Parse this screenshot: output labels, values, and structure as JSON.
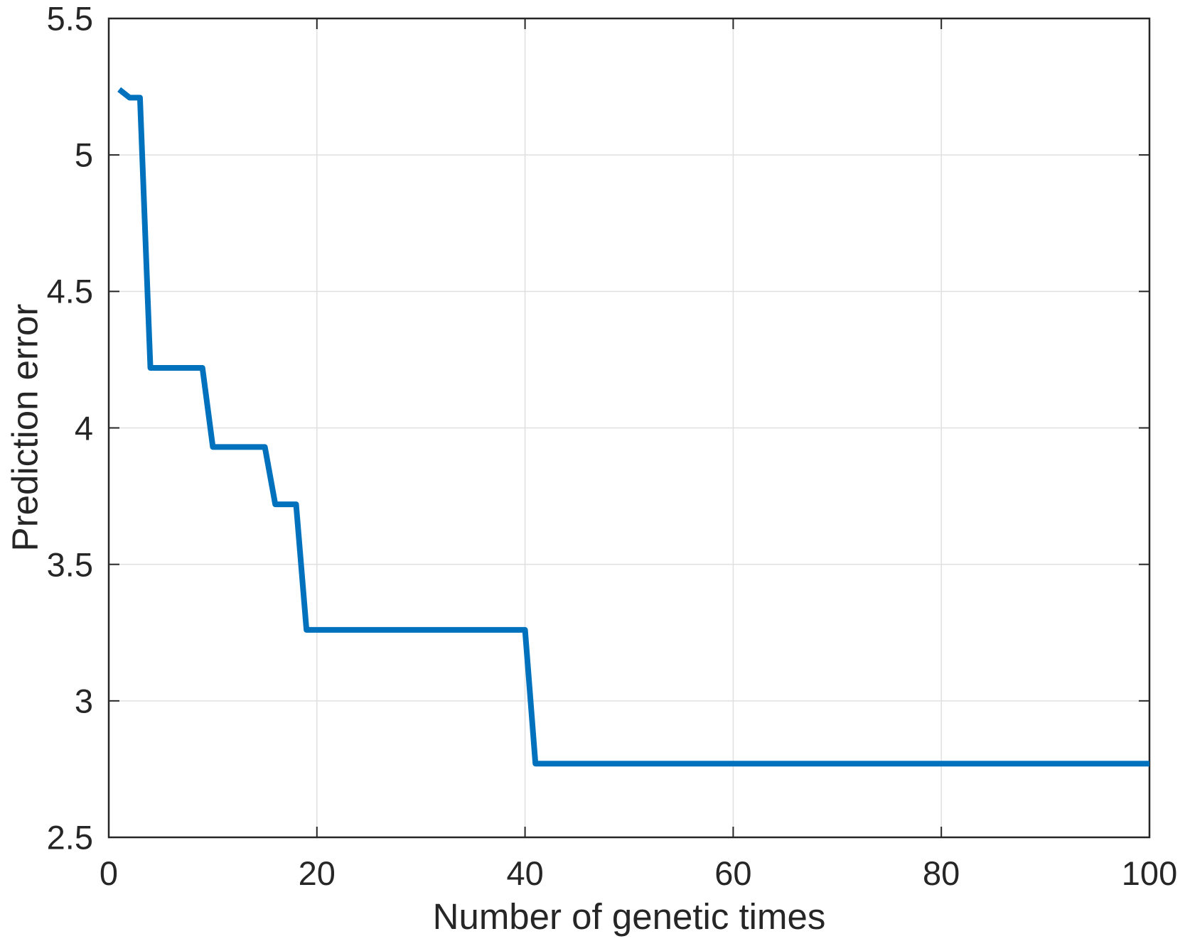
{
  "figure": {
    "background_color": "#ffffff"
  },
  "chart_data": {
    "type": "line",
    "xlabel": "Number of genetic times",
    "ylabel": "Prediction error",
    "xlim": [
      0,
      100
    ],
    "ylim": [
      2.5,
      5.5
    ],
    "xticks": [
      0,
      20,
      40,
      60,
      80,
      100
    ],
    "yticks": [
      2.5,
      3,
      3.5,
      4,
      4.5,
      5,
      5.5
    ],
    "xtick_labels": [
      "0",
      "20",
      "40",
      "60",
      "80",
      "100"
    ],
    "ytick_labels": [
      "2.5",
      "3",
      "3.5",
      "4",
      "4.5",
      "5",
      "5.5"
    ],
    "grid": true,
    "legend_position": "none",
    "axis_color": "#262626",
    "grid_color": "#e0e0e0",
    "tick_label_color": "#262626",
    "series": [
      {
        "name": "Prediction error",
        "color": "#0072BD",
        "line_width": 8,
        "x_start": 1,
        "x_step": 1,
        "values": [
          5.24,
          5.21,
          5.21,
          4.22,
          4.22,
          4.22,
          4.22,
          4.22,
          4.22,
          3.93,
          3.93,
          3.93,
          3.93,
          3.93,
          3.93,
          3.72,
          3.72,
          3.72,
          3.26,
          3.26,
          3.26,
          3.26,
          3.26,
          3.26,
          3.26,
          3.26,
          3.26,
          3.26,
          3.26,
          3.26,
          3.26,
          3.26,
          3.26,
          3.26,
          3.26,
          3.26,
          3.26,
          3.26,
          3.26,
          3.26,
          2.77,
          2.77,
          2.77,
          2.77,
          2.77,
          2.77,
          2.77,
          2.77,
          2.77,
          2.77,
          2.77,
          2.77,
          2.77,
          2.77,
          2.77,
          2.77,
          2.77,
          2.77,
          2.77,
          2.77,
          2.77,
          2.77,
          2.77,
          2.77,
          2.77,
          2.77,
          2.77,
          2.77,
          2.77,
          2.77,
          2.77,
          2.77,
          2.77,
          2.77,
          2.77,
          2.77,
          2.77,
          2.77,
          2.77,
          2.77,
          2.77,
          2.77,
          2.77,
          2.77,
          2.77,
          2.77,
          2.77,
          2.77,
          2.77,
          2.77,
          2.77,
          2.77,
          2.77,
          2.77,
          2.77,
          2.77,
          2.77,
          2.77,
          2.77,
          2.77
        ]
      }
    ]
  }
}
